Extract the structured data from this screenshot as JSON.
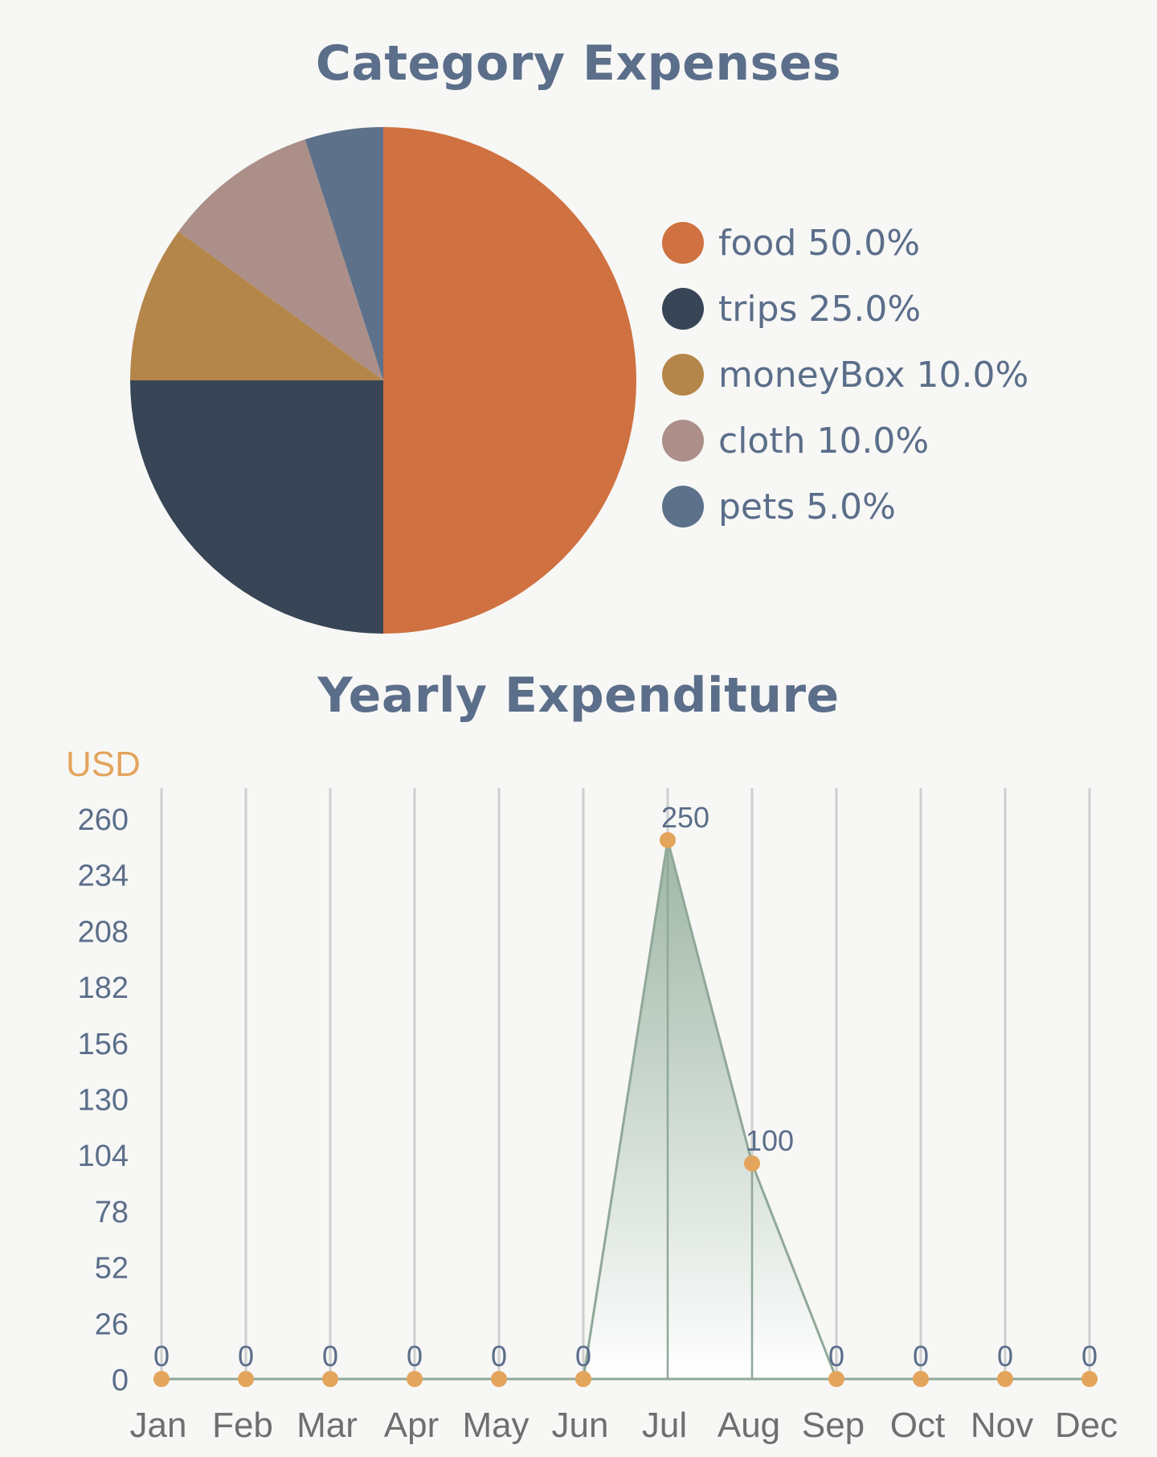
{
  "chart_data": [
    {
      "type": "pie",
      "title": "Category Expenses",
      "slices": [
        {
          "label": "food",
          "percent": "50.0%",
          "value": 50.0,
          "color": "#cf7140"
        },
        {
          "label": "trips",
          "percent": "25.0%",
          "value": 25.0,
          "color": "#374556"
        },
        {
          "label": "moneyBox",
          "percent": "10.0%",
          "value": 10.0,
          "color": "#b5864a"
        },
        {
          "label": "cloth",
          "percent": "10.0%",
          "value": 10.0,
          "color": "#ab8f88"
        },
        {
          "label": "pets",
          "percent": "5.0%",
          "value": 5.0,
          "color": "#5d718b"
        }
      ],
      "legend_position": "right"
    },
    {
      "type": "area",
      "title": "Yearly Expenditure",
      "ylabel": "USD",
      "categories": [
        "Jan",
        "Feb",
        "Mar",
        "Apr",
        "May",
        "Jun",
        "Jul",
        "Aug",
        "Sep",
        "Oct",
        "Nov",
        "Dec"
      ],
      "values": [
        0,
        0,
        0,
        0,
        0,
        0,
        250,
        100,
        0,
        0,
        0,
        0
      ],
      "yticks": [
        0,
        26,
        52,
        78,
        104,
        130,
        156,
        182,
        208,
        234,
        260
      ],
      "ylim": [
        0,
        260
      ],
      "grid": "vertical",
      "line_color": "#90a898",
      "point_color": "#e3a45b"
    }
  ]
}
